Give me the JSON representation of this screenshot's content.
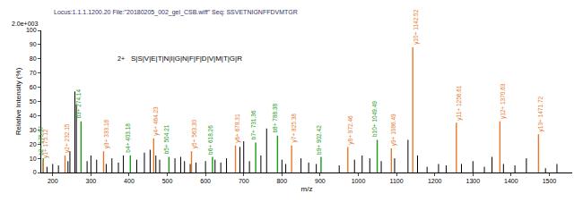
{
  "chart_data": {
    "type": "stem",
    "title": "Locus:1.1.1.1200.20 File:\"20180205_002_gel_CSB.wiff\" Seq: SSVETNIGNFFDVMTGR",
    "scale_label": "2.0e+003",
    "charge": "2+",
    "sequence": "S|S|V|E|T|N|I|G|N|F|F|D|V|M|T|G|R",
    "xlabel": "m/z",
    "ylabel": "Relative Intensity (%)",
    "xlim": [
      170,
      1560
    ],
    "ylim": [
      0,
      100
    ],
    "xticks": [
      200,
      300,
      400,
      500,
      600,
      700,
      800,
      900,
      1000,
      1100,
      1200,
      1300,
      1400,
      1500
    ],
    "yticks": [
      0,
      10,
      20,
      30,
      40,
      50,
      60,
      70,
      80,
      90,
      100
    ],
    "grid": false,
    "series": [
      {
        "color": "#000000",
        "x": [
          185,
          200,
          215,
          240,
          245,
          258,
          262,
          290,
          300,
          315,
          340,
          355,
          372,
          385,
          420,
          440,
          455,
          470,
          480,
          520,
          535,
          545,
          560,
          575,
          600,
          625,
          640,
          655,
          690,
          700,
          715,
          745,
          760,
          800,
          810,
          850,
          870,
          890,
          950,
          990,
          1010,
          1030,
          1060,
          1095,
          1130,
          1155,
          1180,
          1210,
          1230,
          1270,
          1300,
          1330,
          1350,
          1380,
          1410,
          1440,
          1490,
          1520
        ],
        "values": [
          4,
          6,
          5,
          8,
          15,
          57,
          48,
          8,
          12,
          9,
          6,
          10,
          7,
          12,
          9,
          14,
          16,
          12,
          9,
          10,
          11,
          8,
          6,
          7,
          8,
          9,
          7,
          10,
          18,
          22,
          8,
          12,
          31,
          9,
          6,
          10,
          7,
          6,
          5,
          9,
          12,
          10,
          8,
          10,
          23,
          12,
          4,
          6,
          5,
          6,
          8,
          4,
          11,
          6,
          5,
          10,
          3,
          6
        ]
      },
      {
        "color": "#1a9a1a",
        "x": [
          175.07,
          274.14,
          403.18,
          504.21,
          618.26,
          731.36,
          788.38,
          902.42,
          1049.49
        ],
        "values": [
          10,
          36,
          12,
          11,
          11,
          21,
          26,
          11,
          23
        ],
        "labels": [
          "b2+ 175.07",
          "b3+ 274.14",
          "b4+ 403.18",
          "b5+ 504.21",
          "b6+ 618.26",
          "b7+ 731.36",
          "b8+ 788.38",
          "b9+ 902.42",
          "b10+ 1049.49"
        ]
      },
      {
        "color": "#e8782a",
        "x": [
          175.12,
          232.15,
          333.18,
          464.23,
          563.3,
          678.31,
          825.38,
          972.46,
          1086.49,
          1142.52,
          1256.61,
          1370.63,
          1471.72
        ],
        "values": [
          8,
          12,
          15,
          24,
          15,
          19,
          19,
          18,
          17,
          88,
          35,
          36,
          27
        ],
        "labels": [
          "y1+ 175.12",
          "y2+ 232.15",
          "y3+ 333.18",
          "y4+ 464.23",
          "y5+ 563.30",
          "y6+ 678.31",
          "y7+ 825.38",
          "y8+ 972.46",
          "y9+ 1086.49",
          "y10+ 1142.52",
          "y11+ 1256.61",
          "y12+ 1370.63",
          "y13+ 1471.72"
        ]
      }
    ]
  }
}
